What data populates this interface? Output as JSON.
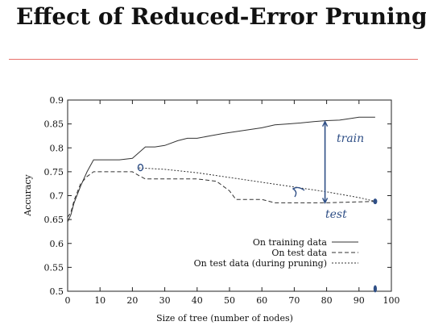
{
  "slide": {
    "title": "Effect of Reduced-Error Pruning"
  },
  "colors": {
    "rule": "#e8706a",
    "series": "#333333",
    "annotation_ink": "#2f4f86"
  },
  "chart_data": {
    "type": "line",
    "title": "",
    "xlabel": "Size of tree (number of nodes)",
    "ylabel": "Accuracy",
    "xlim": [
      0,
      100
    ],
    "ylim": [
      0.5,
      0.9
    ],
    "xticks": [
      0,
      10,
      20,
      30,
      40,
      50,
      60,
      70,
      80,
      90,
      100
    ],
    "yticks": [
      0.5,
      0.55,
      0.6,
      0.65,
      0.7,
      0.75,
      0.8,
      0.85,
      0.9
    ],
    "grid": false,
    "legend_position": "bottom-right",
    "series": [
      {
        "name": "On training data",
        "style": "solid",
        "x": [
          0,
          1,
          2,
          4,
          6,
          8,
          12,
          16,
          20,
          22,
          24,
          27,
          30,
          34,
          37,
          40,
          44,
          48,
          52,
          56,
          60,
          64,
          68,
          72,
          76,
          80,
          84,
          88,
          90,
          95
        ],
        "y": [
          0.645,
          0.66,
          0.685,
          0.72,
          0.75,
          0.775,
          0.775,
          0.775,
          0.778,
          0.79,
          0.802,
          0.802,
          0.805,
          0.815,
          0.82,
          0.82,
          0.825,
          0.83,
          0.834,
          0.838,
          0.842,
          0.848,
          0.85,
          0.852,
          0.855,
          0.857,
          0.858,
          0.862,
          0.864,
          0.864
        ]
      },
      {
        "name": "On test data",
        "style": "dashed",
        "x": [
          0,
          1,
          2,
          4,
          6,
          8,
          12,
          16,
          20,
          22,
          24,
          30,
          40,
          46,
          50,
          52,
          60,
          64,
          70,
          80,
          90,
          95
        ],
        "y": [
          0.655,
          0.665,
          0.69,
          0.725,
          0.74,
          0.75,
          0.75,
          0.75,
          0.75,
          0.742,
          0.735,
          0.735,
          0.735,
          0.73,
          0.71,
          0.692,
          0.692,
          0.685,
          0.685,
          0.685,
          0.687,
          0.688
        ]
      },
      {
        "name": "On test data (during pruning)",
        "style": "dotted",
        "x": [
          22,
          30,
          40,
          50,
          60,
          70,
          80,
          90,
          95
        ],
        "y": [
          0.758,
          0.755,
          0.748,
          0.738,
          0.728,
          0.718,
          0.708,
          0.696,
          0.688
        ]
      }
    ],
    "annotations": [
      {
        "text": "train",
        "handwritten": true
      },
      {
        "text": "test",
        "handwritten": true
      }
    ]
  }
}
